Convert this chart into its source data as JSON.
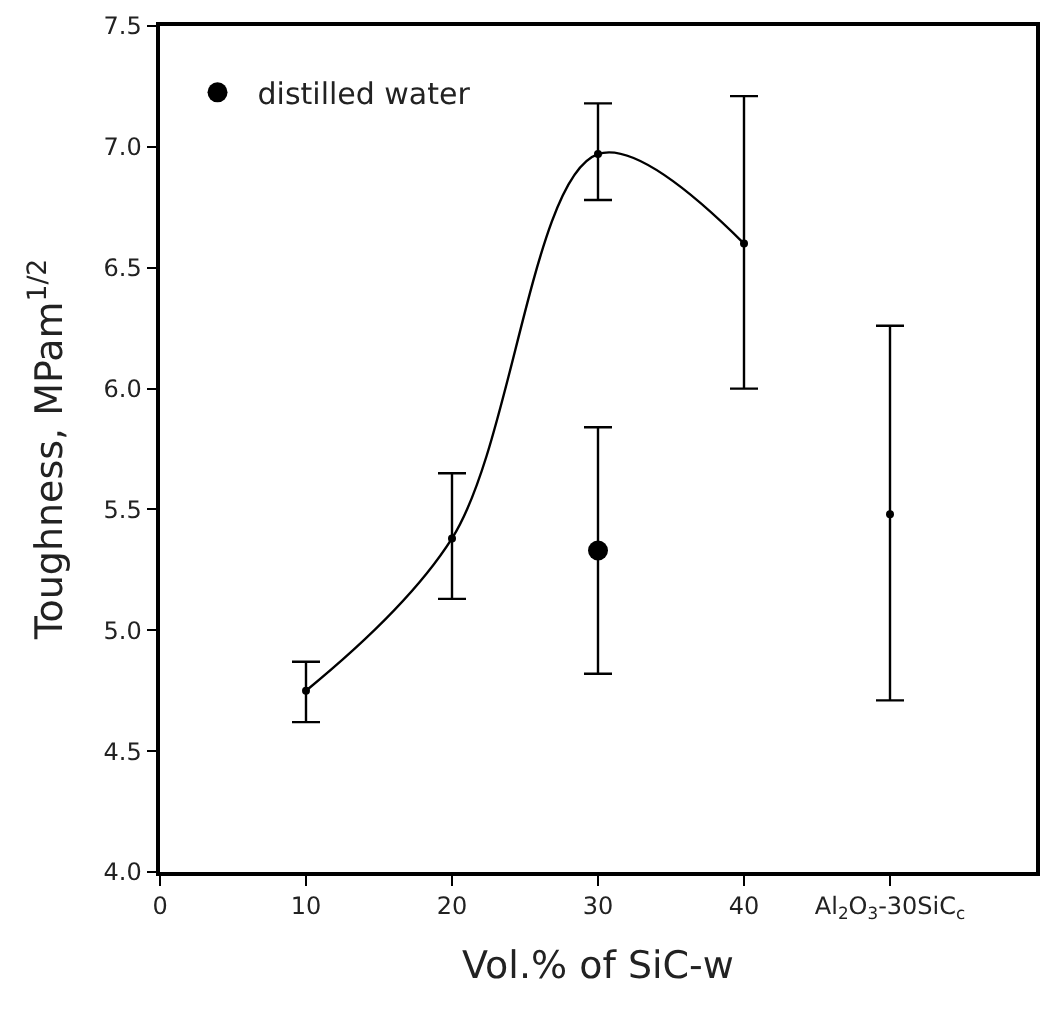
{
  "chart_data": {
    "type": "line",
    "xlabel": "Vol.% of SiC-w",
    "ylabel": "Toughness, MPam$^{1/2}$",
    "xlim": [
      0,
      60
    ],
    "xticks": [
      0,
      10,
      20,
      30,
      40,
      {
        "value": 50,
        "label": "Al$_{2}$O$_{3}$-30SiC$_{c}$"
      }
    ],
    "ylim": [
      4.0,
      7.5
    ],
    "yticks": [
      {
        "value": 4,
        "label": "4.0"
      },
      4.5,
      {
        "value": 5,
        "label": "5.0"
      },
      5.5,
      {
        "value": 6,
        "label": "6.0"
      },
      6.5,
      {
        "value": 7,
        "label": "7.0"
      },
      7.5
    ],
    "legend": "top left",
    "marker": "circle",
    "line_style": "solid",
    "series": [
      {
        "color": "#000000",
        "x": [
          10,
          20,
          30,
          40
        ],
        "values": [
          4.75,
          5.38,
          6.97,
          6.6
        ],
        "errors": [
          [
            4.62,
            4.87
          ],
          [
            5.13,
            5.65
          ],
          [
            6.78,
            7.18
          ],
          [
            6.0,
            7.21
          ]
        ]
      },
      {
        "type": "scatter",
        "color": "#000000",
        "x": [
          50
        ],
        "values": [
          5.48
        ],
        "errors": [
          [
            4.71,
            6.26
          ]
        ]
      },
      {
        "type": "scatter",
        "name": "distilled water",
        "color": "#000000",
        "x": [
          30
        ],
        "values": [
          5.33
        ],
        "errors": [
          [
            4.82,
            5.84
          ]
        ]
      }
    ]
  }
}
